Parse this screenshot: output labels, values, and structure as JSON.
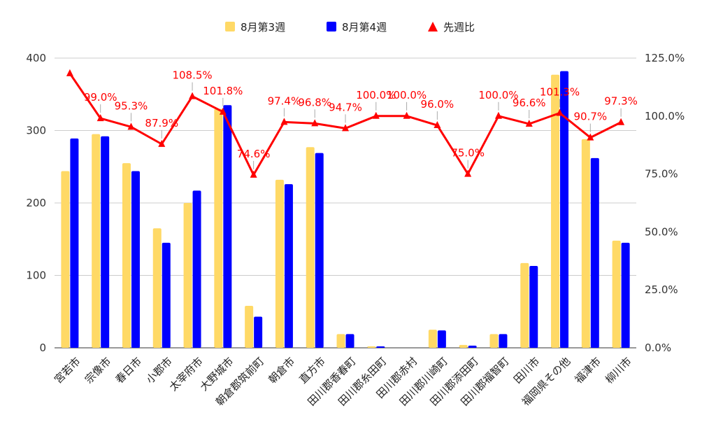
{
  "chart_data": {
    "type": "bar",
    "categories": [
      "宮若市",
      "宗像市",
      "春日市",
      "小郡市",
      "太宰府市",
      "大野城市",
      "朝倉郡筑前町",
      "朝倉市",
      "直方市",
      "田川郡香春町",
      "田川郡糸田町",
      "田川郡赤村",
      "田川郡川崎町",
      "田川郡添田町",
      "田川郡福智町",
      "田川市",
      "福岡県その他",
      "福津市",
      "柳川市"
    ],
    "series": [
      {
        "name": "8月第3週",
        "type": "bar",
        "axis": "left",
        "color": "#ffd966",
        "values": [
          244,
          295,
          255,
          165,
          200,
          330,
          58,
          232,
          277,
          19,
          2,
          0,
          25,
          4,
          19,
          117,
          377,
          288,
          148
        ]
      },
      {
        "name": "8月第4週",
        "type": "bar",
        "axis": "left",
        "color": "#0000ff",
        "values": [
          289,
          292,
          244,
          145,
          217,
          335,
          43,
          226,
          269,
          19,
          2,
          0,
          24,
          3,
          19,
          113,
          382,
          262,
          145
        ]
      },
      {
        "name": "先週比",
        "type": "line",
        "axis": "right",
        "color": "#ff0000",
        "values": [
          118.4,
          99.0,
          95.3,
          87.9,
          108.5,
          101.8,
          74.6,
          97.4,
          96.8,
          94.7,
          100.0,
          100.0,
          96.0,
          75.0,
          100.0,
          96.6,
          101.3,
          90.7,
          97.3
        ],
        "labels": [
          "",
          "99.0%",
          "95.3%",
          "87.9%",
          "108.5%",
          "101.8%",
          "74.6%",
          "97.4%",
          "96.8%",
          "94.7%",
          "100.0%",
          "100.0%",
          "96.0%",
          "75.0%",
          "100.0%",
          "96.6%",
          "101.3%",
          "90.7%",
          "97.3%"
        ]
      }
    ],
    "y_left": {
      "min": 0,
      "max": 400,
      "ticks": [
        "0",
        "100",
        "200",
        "300",
        "400"
      ],
      "tick_values": [
        0,
        100,
        200,
        300,
        400
      ]
    },
    "y_right": {
      "min": 0,
      "max": 125,
      "ticks": [
        "0.0%",
        "25.0%",
        "50.0%",
        "75.0%",
        "100.0%",
        "125.0%"
      ],
      "tick_values": [
        0,
        25,
        50,
        75,
        100,
        125
      ]
    },
    "legend_position": "top-center",
    "grid": true
  }
}
